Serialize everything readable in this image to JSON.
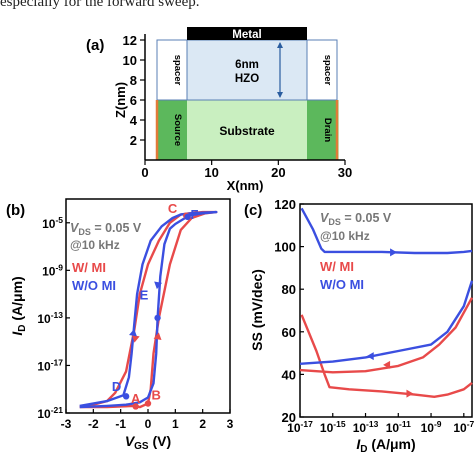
{
  "header_text": "especially for the forward sweep.",
  "panel_a": {
    "label": "(a)",
    "x_ticks": [
      "0",
      "10",
      "20",
      "30"
    ],
    "y_ticks": [
      "2",
      "4",
      "6",
      "8",
      "10",
      "12"
    ],
    "xlabel": "X(nm)",
    "ylabel": "Z(nm)",
    "metal_label": "Metal",
    "hzo_label_1": "6nm",
    "hzo_label_2": "HZO",
    "substrate_label": "Substrate",
    "source_label": "Source",
    "drain_label": "Drain",
    "spacer_label": "spacer",
    "colors": {
      "metal": "#000000",
      "hzo": "#dbe8f4",
      "spacer": "#ffffff",
      "source_drain": "#5cb85c",
      "substrate": "#c9efc0",
      "edge": "#e07b39"
    }
  },
  "chart_data": [
    {
      "type": "line",
      "panel": "(b)",
      "annotation_vds": "V",
      "annotation_vds_sub": "DS",
      "annotation_vds_val": " = 0.05 V",
      "annotation_freq": "@10 kHz",
      "xlabel": "V",
      "xlabel_sub": "GS",
      "xlabel_unit": " (V)",
      "ylabel": "I",
      "ylabel_sub": "D",
      "ylabel_unit": " (A/μm)",
      "xlim": [
        -3,
        3
      ],
      "ylim": [
        -21,
        -3
      ],
      "x_ticks": [
        "-3",
        "-2",
        "-1",
        "0",
        "1",
        "2",
        "3"
      ],
      "y_ticks": [
        {
          "base": "10",
          "exp": "-5",
          "value": -5
        },
        {
          "base": "10",
          "exp": "-9",
          "value": -9
        },
        {
          "base": "10",
          "exp": "-13",
          "value": -13
        },
        {
          "base": "10",
          "exp": "-17",
          "value": -17
        },
        {
          "base": "10",
          "exp": "-21",
          "value": -21
        }
      ],
      "series": [
        {
          "name": "W/ MI",
          "color": "#e84a4a",
          "x": [
            -2.5,
            -1.5,
            -0.5,
            -0.3,
            -0.1,
            0.0,
            0.1,
            0.2,
            0.4,
            0.8,
            1.2,
            1.6,
            2.1,
            2.5,
            2.5,
            2.0,
            1.5,
            1.2,
            0.8,
            0.4,
            0.0,
            -0.3,
            -0.5,
            -0.8,
            -1.2,
            -1.5,
            -2.0,
            -2.5
          ],
          "y": [
            -20.5,
            -20.5,
            -20.4,
            -20.5,
            -20.3,
            -20.2,
            -19.0,
            -16.0,
            -13.0,
            -8.5,
            -5.6,
            -4.6,
            -4.2,
            -4.1,
            -4.1,
            -4.1,
            -4.2,
            -4.3,
            -5.0,
            -6.5,
            -8.5,
            -11.0,
            -14.0,
            -17.5,
            -19.3,
            -20.0,
            -20.3,
            -20.5
          ]
        },
        {
          "name": "W/O MI",
          "color": "#3b4fe0",
          "x": [
            -2.5,
            -1.5,
            -0.9,
            -0.7,
            -0.6,
            -0.5,
            -0.4,
            -0.2,
            0.1,
            0.5,
            0.9,
            1.2,
            1.6,
            2.0,
            2.5,
            2.5,
            2.0,
            1.5,
            1.0,
            0.8,
            0.6,
            0.45,
            0.35,
            0.3,
            0.2,
            0.0,
            -0.3,
            -0.8,
            -1.5,
            -2.5
          ],
          "y": [
            -20.4,
            -20.0,
            -19.5,
            -18.0,
            -16.0,
            -13.5,
            -11.0,
            -8.5,
            -6.5,
            -5.3,
            -4.6,
            -4.3,
            -4.2,
            -4.15,
            -4.1,
            -4.1,
            -4.2,
            -4.4,
            -5.1,
            -5.5,
            -6.8,
            -9.5,
            -13.0,
            -16.0,
            -18.5,
            -19.7,
            -20.1,
            -20.3,
            -20.4,
            -20.5
          ]
        }
      ],
      "legend": [
        "W/ MI",
        "W/O MI"
      ],
      "point_labels": [
        {
          "text": "A",
          "x": -0.45,
          "y": -20.5,
          "color": "#e84a4a"
        },
        {
          "text": "B",
          "x": 0.3,
          "y": -20.2,
          "color": "#e84a4a"
        },
        {
          "text": "C",
          "x": 0.9,
          "y": -4.5,
          "color": "#e84a4a"
        },
        {
          "text": "D",
          "x": -1.15,
          "y": -19.5,
          "color": "#3b4fe0"
        },
        {
          "text": "E",
          "x": -0.15,
          "y": -11.8,
          "color": "#3b4fe0"
        },
        {
          "text": "F",
          "x": 1.7,
          "y": -5.0,
          "color": "#3b4fe0"
        }
      ],
      "markers": [
        {
          "x": -0.45,
          "y": -20.45,
          "color": "#e84a4a"
        },
        {
          "x": 0.0,
          "y": -20.2,
          "color": "#e84a4a"
        },
        {
          "x": 1.4,
          "y": -4.4,
          "color": "#e84a4a"
        },
        {
          "x": -0.8,
          "y": -19.6,
          "color": "#3b4fe0"
        },
        {
          "x": 0.35,
          "y": -13.0,
          "color": "#3b4fe0"
        },
        {
          "x": 1.45,
          "y": -4.5,
          "color": "#3b4fe0"
        }
      ]
    },
    {
      "type": "line",
      "panel": "(c)",
      "annotation_vds": "V",
      "annotation_vds_sub": "DS",
      "annotation_vds_val": " = 0.05 V",
      "annotation_freq": "@10 kHz",
      "xlabel": "I",
      "xlabel_sub": "D",
      "xlabel_unit": " (A/μm)",
      "ylabel": "SS (mV/dec)",
      "xlim": [
        -17,
        -6.5
      ],
      "ylim": [
        20,
        120
      ],
      "x_ticks": [
        {
          "base": "10",
          "exp": "-17",
          "value": -17
        },
        {
          "base": "10",
          "exp": "-15",
          "value": -15
        },
        {
          "base": "10",
          "exp": "-13",
          "value": -13
        },
        {
          "base": "10",
          "exp": "-11",
          "value": -11
        },
        {
          "base": "10",
          "exp": "-9",
          "value": -9
        },
        {
          "base": "10",
          "exp": "-7",
          "value": -7
        }
      ],
      "y_ticks": [
        "20",
        "40",
        "60",
        "80",
        "100",
        "120"
      ],
      "series": [
        {
          "name": "W/ MI",
          "color": "#e84a4a",
          "segment": "low",
          "x": [
            -16.9,
            -16.0,
            -15.5,
            -15.2,
            -14.0,
            -12.0,
            -10.0,
            -8.8,
            -8.0,
            -7.0,
            -6.5
          ],
          "y": [
            68,
            51,
            40,
            34,
            33,
            32,
            30.5,
            29.5,
            30.5,
            33,
            36
          ]
        },
        {
          "name": "W/ MI",
          "color": "#e84a4a",
          "segment": "high",
          "x": [
            -17.0,
            -15.0,
            -13.0,
            -11.0,
            -9.5,
            -8.5,
            -7.5,
            -6.5
          ],
          "y": [
            42,
            41,
            41.5,
            44,
            48,
            54,
            62,
            76
          ]
        },
        {
          "name": "W/O MI",
          "color": "#3b4fe0",
          "segment": "high",
          "x": [
            -16.9,
            -16.2,
            -15.7,
            -15.5,
            -14.0,
            -12.0,
            -10.0,
            -8.0,
            -7.0,
            -6.5
          ],
          "y": [
            118,
            108,
            99,
            97.5,
            97.5,
            97.5,
            97,
            97,
            97.5,
            98
          ]
        },
        {
          "name": "W/O MI",
          "color": "#3b4fe0",
          "segment": "low",
          "x": [
            -17.0,
            -15.0,
            -13.0,
            -11.0,
            -9.0,
            -8.0,
            -7.0,
            -6.5
          ],
          "y": [
            45,
            46,
            48,
            51,
            54,
            60,
            72,
            84
          ]
        }
      ],
      "legend": [
        "W/ MI",
        "W/O MI"
      ]
    }
  ]
}
